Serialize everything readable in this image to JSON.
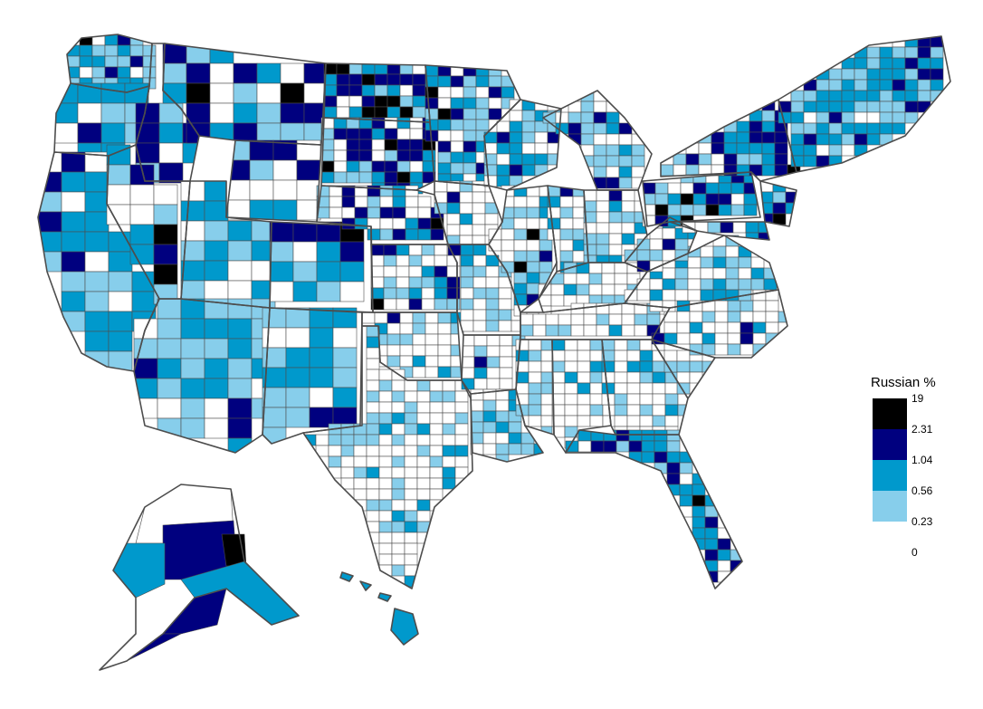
{
  "legend": {
    "title": "Russian %",
    "breaks": [
      "19",
      "2.31",
      "1.04",
      "0.56",
      "0.23",
      "0"
    ],
    "colors": [
      "#000000",
      "#00007f",
      "#0099cc",
      "#87ceeb",
      "#ffffff"
    ]
  },
  "colors": {
    "border": "#4d4d4d",
    "background": "#ffffff"
  }
}
